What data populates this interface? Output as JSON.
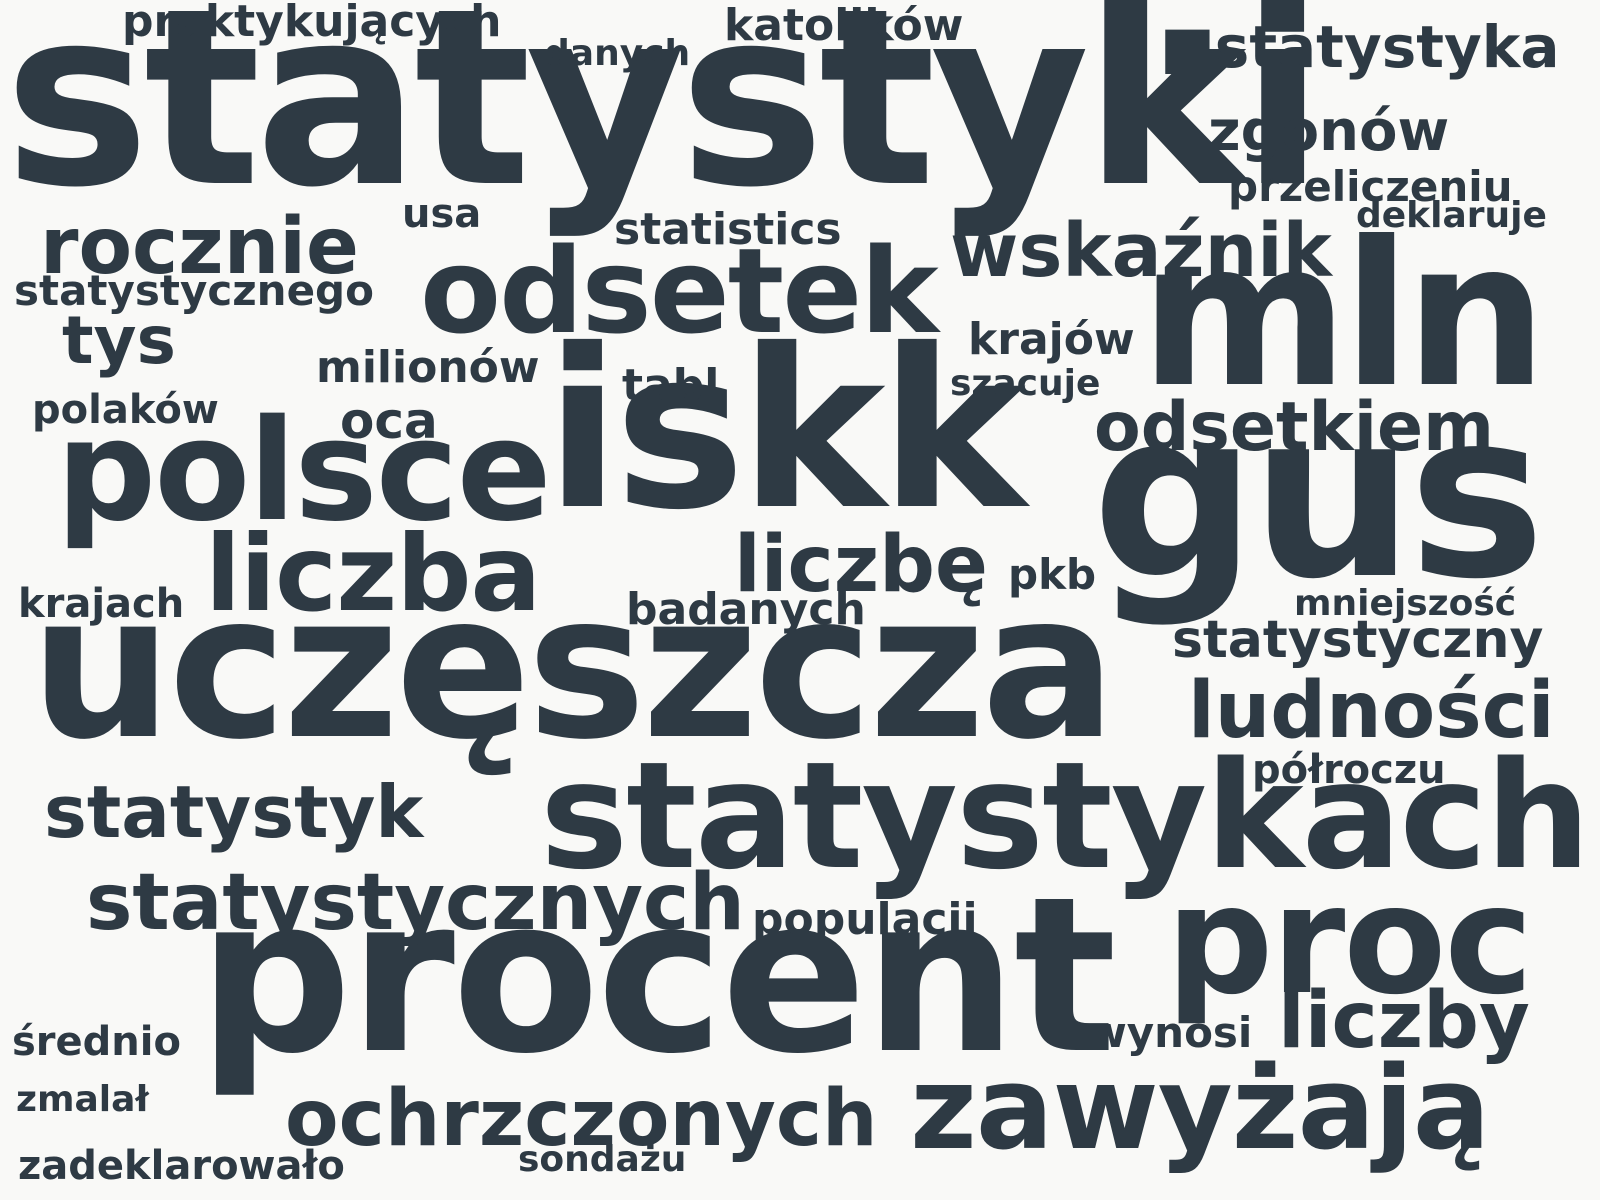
{
  "word_cloud": {
    "text_color": "#2e3a44",
    "background": "#f9f9f7",
    "words": {
      "w1": "statystyki",
      "w2": "uczęszcza",
      "w3": "procent",
      "w4": "iskk",
      "w5": "gus",
      "w6": "mln",
      "w7": "statystykach",
      "w8": "proc",
      "w9": "polsce",
      "w10": "odsetek",
      "w11": "liczba",
      "w12": "zawyżają",
      "w13": "statystycznych",
      "w14": "ochrzczonych",
      "w15": "ludności",
      "w16": "liczby",
      "w17": "statystyk",
      "w18": "liczbę",
      "w19": "rocznie",
      "w20": "wskaźnik",
      "w21": "odsetkiem",
      "w22": "tys",
      "w23": "■statystyka",
      "w24": "zgonów",
      "w25": "statystyczny",
      "w26": "oca",
      "w27": "krajów",
      "w28": "statistics",
      "w29": "katolików",
      "w30": "praktykujących",
      "w31": "milionów",
      "w32": "tabl",
      "w33": "badanych",
      "w34": "populacji",
      "w35": "przeliczeniu",
      "w36": "statystycznego",
      "w37": "pkb",
      "w38": "wynosi",
      "w39": "usa",
      "w40": "średnio",
      "w41": "krajach",
      "w42": "polaków",
      "w43": "półroczu",
      "w44": "zadeklarowało",
      "w45": "szacuje",
      "w46": "danych",
      "w47": "deklaruje",
      "w48": "mniejszość",
      "w49": "sondażu",
      "w50": "zmalał"
    }
  }
}
